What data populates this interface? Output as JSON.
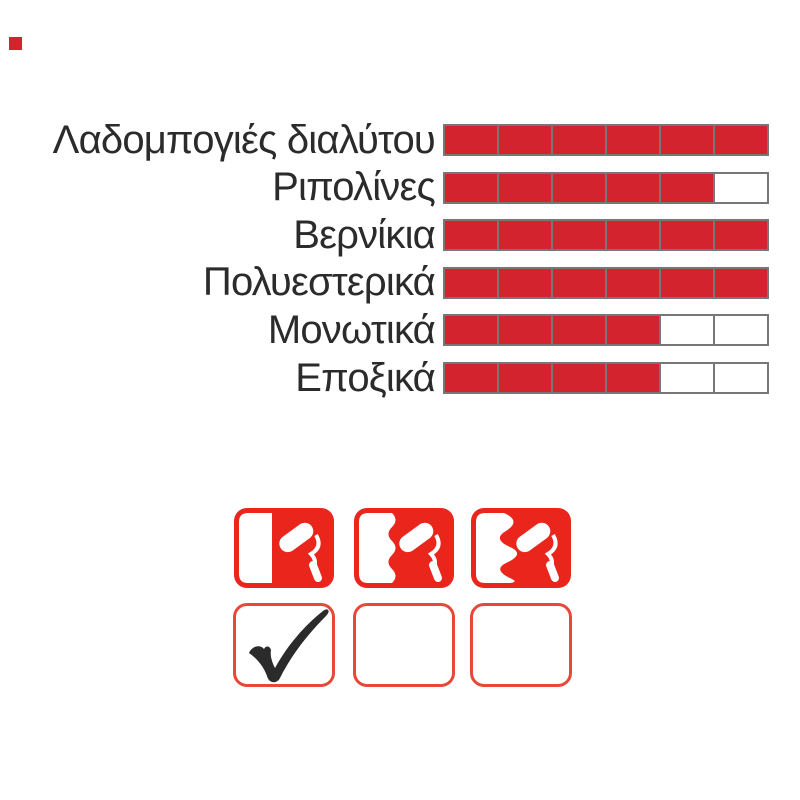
{
  "title": "Paint product compatibility infographic",
  "corner_mark": {
    "color": "#d2232e"
  },
  "chart_data": {
    "type": "bar",
    "orientation": "horizontal-segmented",
    "title": "",
    "xlabel": "",
    "ylabel": "",
    "categories": [
      "Λαδομπογιές διαλύτου",
      "Ριπολίνες",
      "Βερνίκια",
      "Πολυεστερικά",
      "Μονωτικά",
      "Εποξικά"
    ],
    "values": [
      6,
      5,
      6,
      6,
      4,
      4
    ],
    "max_segments": 6,
    "xlim": [
      0,
      6
    ],
    "legend": "none",
    "grid": "segment-borders",
    "colors": {
      "filled": "#d2232e",
      "empty": "#ffffff",
      "border": "#777777",
      "label": "#2b2b2b"
    }
  },
  "icon_panel": {
    "top_row": [
      {
        "icon": "paint-roller-full-coverage-icon",
        "edge": "straight"
      },
      {
        "icon": "paint-roller-medium-coverage-icon",
        "edge": "wavy"
      },
      {
        "icon": "paint-roller-low-coverage-icon",
        "edge": "jagged"
      }
    ],
    "bottom_row": [
      {
        "icon": "checkbox-checked-icon",
        "checked": true
      },
      {
        "icon": "checkbox-empty-icon",
        "checked": false
      },
      {
        "icon": "checkbox-empty-icon",
        "checked": false
      }
    ],
    "colors": {
      "icon_red": "#e9251c",
      "box_border": "#e8483a",
      "check": "#2b2b2b"
    }
  }
}
